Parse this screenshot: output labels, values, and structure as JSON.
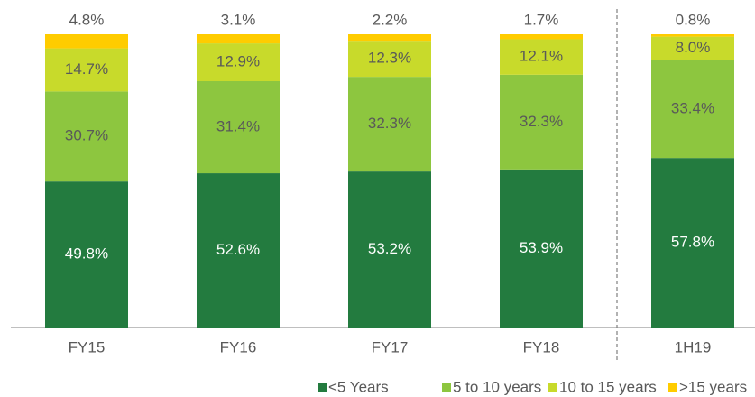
{
  "chart_data": {
    "type": "stacked_bar",
    "categories": [
      "FY15",
      "FY16",
      "FY17",
      "FY18",
      "1H19"
    ],
    "series": [
      {
        "name": "<5 Years",
        "color": "#237b3f",
        "values": [
          49.8,
          52.6,
          53.2,
          53.9,
          57.8
        ],
        "value_labels": [
          "49.8%",
          "52.6%",
          "53.2%",
          "53.9%",
          "57.8%"
        ]
      },
      {
        "name": "5 to 10 years",
        "color": "#8dc63f",
        "values": [
          30.7,
          31.4,
          32.3,
          32.3,
          33.4
        ],
        "value_labels": [
          "30.7%",
          "31.4%",
          "32.3%",
          "32.3%",
          "33.4%"
        ]
      },
      {
        "name": "10 to 15 years",
        "color": "#c8da2b",
        "values": [
          14.7,
          12.9,
          12.3,
          12.1,
          8.0
        ],
        "value_labels": [
          "14.7%",
          "12.9%",
          "12.3%",
          "12.1%",
          "8.0%"
        ]
      },
      {
        "name": ">15 years",
        "color": "#ffcc00",
        "values": [
          4.8,
          3.1,
          2.2,
          1.7,
          0.8
        ],
        "value_labels": [
          "4.8%",
          "3.1%",
          "2.2%",
          "1.7%",
          "0.8%"
        ]
      }
    ],
    "ylim": [
      0,
      100
    ],
    "legend": "bottom"
  }
}
